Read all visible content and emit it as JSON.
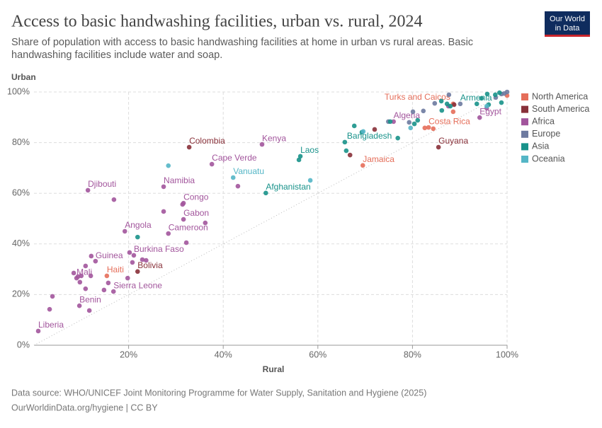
{
  "chart_data": {
    "type": "scatter",
    "title": "Access to basic handwashing facilities, urban vs. rural, 2024",
    "subtitle": "Share of population with access to basic handwashing facilities at home in urban vs rural areas. Basic handwashing facilities include water and soap.",
    "logo": [
      "Our World",
      "in Data"
    ],
    "x_label": "Rural",
    "y_label": "Urban",
    "source": "Data source: WHO/UNICEF Joint Monitoring Programme for Water Supply, Sanitation and Hygiene (2025)",
    "footer": "OurWorldinData.org/hygiene | CC BY",
    "xlim": [
      0,
      100
    ],
    "ylim": [
      0,
      100
    ],
    "xticks": [
      {
        "value": 20,
        "label": "20%"
      },
      {
        "value": 40,
        "label": "40%"
      },
      {
        "value": 60,
        "label": "60%"
      },
      {
        "value": 80,
        "label": "80%"
      },
      {
        "value": 100,
        "label": "100%"
      }
    ],
    "yticks": [
      {
        "value": 0,
        "label": "0%"
      },
      {
        "value": 20,
        "label": "20%"
      },
      {
        "value": 40,
        "label": "40%"
      },
      {
        "value": 60,
        "label": "60%"
      },
      {
        "value": 80,
        "label": "80%"
      },
      {
        "value": 100,
        "label": "100%"
      }
    ],
    "grid": true,
    "legend": "right",
    "series": [
      {
        "name": "North America",
        "color": "#e56e5a",
        "x": [
          88.6,
          83.4,
          82.6,
          84.4,
          15.4,
          69.5,
          88.6,
          100
        ],
        "values": [
          95.3,
          86.0,
          85.8,
          85.5,
          27.4,
          71.0,
          92.2,
          98.6
        ],
        "labels": [
          "Turks and Caicos",
          "Costa Rica",
          null,
          null,
          "Haiti",
          "Jamaica",
          null,
          null
        ]
      },
      {
        "name": "South America",
        "color": "#883039",
        "x": [
          32.8,
          21.9,
          85.5,
          72.0,
          66.8,
          88.8
        ],
        "values": [
          78.2,
          29.1,
          78.2,
          85.2,
          75.1,
          95.0
        ],
        "labels": [
          "Colombia",
          "Bolivia",
          "Guyana",
          null,
          null,
          null
        ]
      },
      {
        "name": "Africa",
        "color": "#a2559c",
        "x": [
          0.9,
          9.6,
          16.8,
          9.0,
          12.1,
          21.1,
          19.2,
          28.4,
          31.6,
          31.6,
          27.4,
          37.6,
          11.4,
          48.2,
          76.0,
          94.2,
          16.9,
          27.4,
          31.4,
          36.2,
          32.2,
          43.1,
          20.2,
          22.9,
          20.8,
          23.7,
          10.9,
          13.0,
          9.3,
          10.0,
          12.0,
          10.9,
          9.7,
          15.7,
          14.8,
          19.8,
          3.9,
          3.3,
          11.7,
          8.4,
          87.6,
          95.7
        ],
        "values": [
          5.6,
          15.6,
          21.2,
          26.5,
          35.2,
          35.5,
          45.0,
          44.1,
          49.7,
          56.1,
          62.6,
          71.5,
          61.2,
          79.3,
          88.3,
          89.9,
          57.5,
          52.8,
          55.6,
          48.3,
          40.5,
          62.8,
          36.6,
          33.8,
          32.7,
          33.5,
          31.3,
          33.2,
          27.1,
          27.4,
          27.4,
          22.3,
          24.9,
          24.6,
          21.8,
          26.5,
          19.3,
          14.2,
          13.7,
          28.5,
          94.4,
          93.6
        ],
        "labels": [
          "Liberia",
          "Benin",
          "Sierra Leone",
          "Mali",
          "Guinea",
          "Burkina Faso",
          "Angola",
          "Cameroon",
          "Gabon",
          "Congo",
          "Namibia",
          "Cape Verde",
          "Djibouti",
          "Kenya",
          "Algeria",
          "Egypt",
          null,
          null,
          null,
          null,
          null,
          null,
          null,
          null,
          null,
          null,
          null,
          null,
          null,
          null,
          null,
          null,
          null,
          null,
          null,
          null,
          null,
          null,
          null,
          null,
          null,
          null
        ]
      },
      {
        "name": "Europe",
        "color": "#6d7aa0",
        "x": [
          87.7,
          82.3,
          80.1,
          84.7,
          97.6,
          98.8,
          99.4,
          100,
          74.9,
          79.3,
          90.1
        ],
        "values": [
          98.9,
          92.5,
          92.2,
          95.5,
          97.8,
          99.2,
          99.4,
          100,
          88.3,
          88.0,
          95.3
        ],
        "labels": [
          null,
          null,
          null,
          null,
          null,
          null,
          null,
          null,
          null,
          null,
          null
        ]
      },
      {
        "name": "Asia",
        "color": "#18928a",
        "x": [
          56.3,
          49.0,
          69.3,
          94.6,
          56.0,
          65.7,
          66.0,
          67.7,
          76.9,
          80.4,
          81.1,
          86.1,
          88.0,
          86.2,
          87.3,
          93.6,
          95.8,
          96.1,
          97.5,
          98.8,
          98.4,
          21.9,
          75.3
        ],
        "values": [
          74.6,
          60.1,
          84.1,
          97.5,
          73.2,
          80.2,
          76.8,
          86.6,
          81.8,
          87.4,
          88.8,
          96.4,
          94.4,
          92.7,
          95.3,
          95.3,
          99.2,
          95.0,
          98.9,
          95.8,
          99.7,
          42.7,
          88.3
        ],
        "labels": [
          "Laos",
          "Afghanistan",
          "Bangladesh",
          "Armenia",
          null,
          null,
          null,
          null,
          null,
          null,
          null,
          null,
          null,
          null,
          null,
          null,
          null,
          null,
          null,
          null,
          null,
          null,
          null
        ]
      },
      {
        "name": "Oceania",
        "color": "#54b6c6",
        "x": [
          42.1,
          28.4,
          58.4,
          69.6,
          79.6,
          95.7
        ],
        "values": [
          66.2,
          70.9,
          65.1,
          84.4,
          85.8,
          94.4
        ],
        "labels": [
          "Vanuatu",
          null,
          null,
          null,
          null,
          null
        ]
      }
    ]
  }
}
